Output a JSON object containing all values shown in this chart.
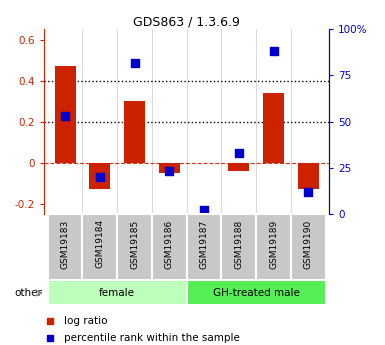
{
  "title": "GDS863 / 1.3.6.9",
  "samples": [
    "GSM19183",
    "GSM19184",
    "GSM19185",
    "GSM19186",
    "GSM19187",
    "GSM19188",
    "GSM19189",
    "GSM19190"
  ],
  "log_ratio": [
    0.47,
    -0.13,
    0.3,
    -0.05,
    0.0,
    -0.04,
    0.34,
    -0.13
  ],
  "percentile_rank": [
    53,
    20,
    82,
    23,
    2,
    33,
    88,
    12
  ],
  "bar_color": "#cc2200",
  "dot_color": "#0000cc",
  "groups": [
    {
      "label": "female",
      "start": 0,
      "end": 3,
      "color": "#bbffbb"
    },
    {
      "label": "GH-treated male",
      "start": 4,
      "end": 7,
      "color": "#55ee55"
    }
  ],
  "ylim_left": [
    -0.25,
    0.65
  ],
  "ylim_right": [
    0,
    100
  ],
  "yticks_left": [
    -0.2,
    0.0,
    0.2,
    0.4,
    0.6
  ],
  "yticks_right": [
    0,
    25,
    50,
    75,
    100
  ],
  "yticklabels_left": [
    "-0.2",
    "0",
    "0.2",
    "0.4",
    "0.6"
  ],
  "yticklabels_right": [
    "0",
    "25",
    "50",
    "75",
    "100%"
  ],
  "hlines": [
    0.2,
    0.4
  ],
  "zero_line_y": 0.0,
  "left_axis_color": "#cc2200",
  "right_axis_color": "#0000cc",
  "other_label": "other",
  "legend_entries": [
    "log ratio",
    "percentile rank within the sample"
  ],
  "bar_width": 0.6,
  "dot_size": 30,
  "label_box_color": "#c8c8c8",
  "label_box_edge_color": "white"
}
